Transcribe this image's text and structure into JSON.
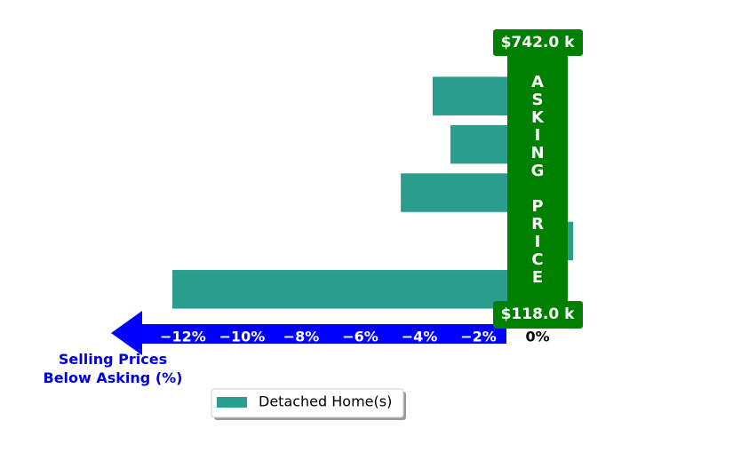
{
  "chart_data": {
    "type": "barh",
    "values": [
      -3.55,
      -2.95,
      -4.63,
      1.2,
      -12.36
    ],
    "series_name": "Detached Home(s)",
    "color": "#2a9d8f",
    "xlim": [
      -13.5,
      1.5
    ],
    "xticks": [
      {
        "value": -12,
        "label": "−12%"
      },
      {
        "value": -10,
        "label": "−10%"
      },
      {
        "value": -8,
        "label": "−8%"
      },
      {
        "value": -6,
        "label": "−6%"
      },
      {
        "value": -4,
        "label": "−4%"
      },
      {
        "value": -2,
        "label": "−2%"
      },
      {
        "value": 0,
        "label": "0%"
      }
    ],
    "xlabel": "Selling Prices\nBelow Asking (%)",
    "band_label": "ASKING PRICE",
    "top_label": "$742.0 k",
    "bottom_label": "$118.0 k",
    "legend": "lower center"
  }
}
